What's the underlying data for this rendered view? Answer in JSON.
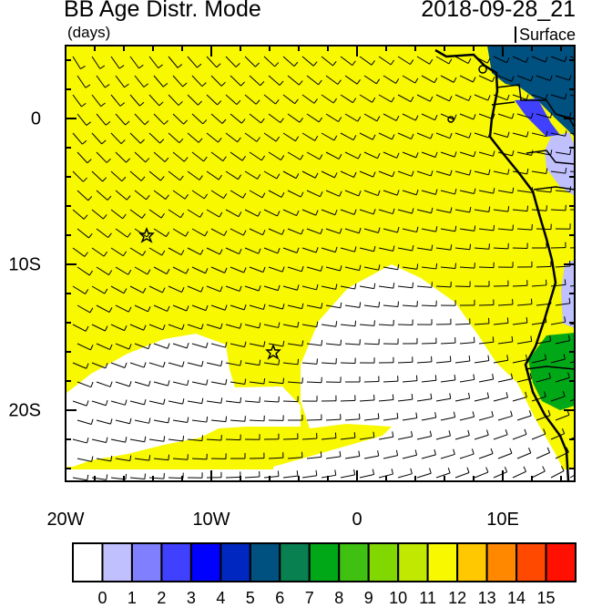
{
  "header": {
    "title": "BB Age Distr. Mode",
    "units": "(days)",
    "datetime": "2018-09-28_21",
    "level": "Surface"
  },
  "map": {
    "lon_range": [
      "20W",
      "15E"
    ],
    "lat_range": [
      "5N",
      "25S"
    ],
    "x_ticks": [
      "20W",
      "10W",
      "0",
      "10E"
    ],
    "y_ticks": [
      "0",
      "10S",
      "20S"
    ],
    "markers": [
      {
        "type": "star",
        "lon": -14.3,
        "lat": -8.0
      },
      {
        "type": "star",
        "lon": -5.7,
        "lat": -16.0
      }
    ],
    "overlay": "wind barbs"
  },
  "colorbar": {
    "labels": [
      "0",
      "1",
      "2",
      "3",
      "4",
      "5",
      "6",
      "7",
      "8",
      "9",
      "10",
      "11",
      "12",
      "13",
      "14",
      "15"
    ],
    "colors": [
      "#ffffff",
      "#c0c0ff",
      "#8080ff",
      "#4040ff",
      "#0000ff",
      "#0028c0",
      "#005080",
      "#088050",
      "#00a818",
      "#40c010",
      "#80d800",
      "#c0e800",
      "#f8f800",
      "#ffc800",
      "#ff8800",
      "#ff4800",
      "#ff1000"
    ]
  }
}
